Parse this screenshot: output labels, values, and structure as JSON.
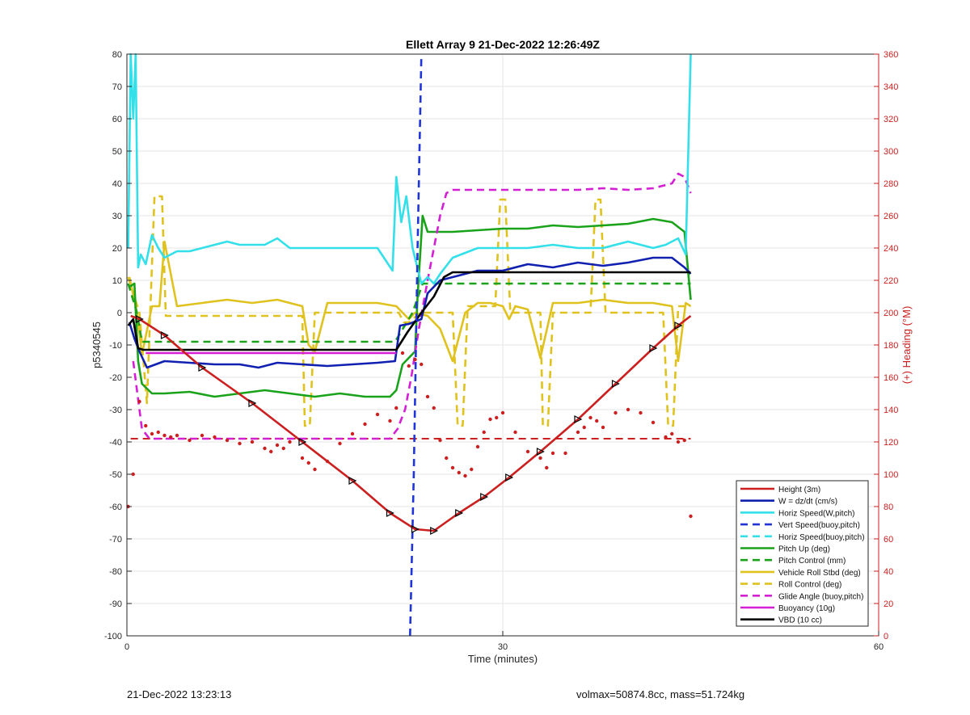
{
  "footer": {
    "left": "21-Dec-2022 13:23:13",
    "right": "volmax=50874.8cc, mass=51.724kg"
  },
  "chart_data": {
    "type": "line",
    "title": "Ellett Array 9 21-Dec-2022 12:26:49Z",
    "xlabel": "Time (minutes)",
    "ylabel": "p5340545",
    "y2label": "(+) Heading (°M)",
    "xlim": [
      0,
      60
    ],
    "ylim": [
      -100,
      80
    ],
    "y2lim": [
      0,
      360
    ],
    "xticks": [
      0,
      30,
      60
    ],
    "yticks": [
      80,
      70,
      60,
      50,
      40,
      30,
      20,
      10,
      0,
      -10,
      -20,
      -30,
      -40,
      -50,
      -60,
      -70,
      -80,
      -90,
      -100
    ],
    "y2ticks": [
      360,
      340,
      320,
      300,
      280,
      260,
      240,
      220,
      200,
      180,
      160,
      140,
      120,
      100,
      80,
      60,
      40,
      20,
      0
    ],
    "grid": true,
    "legend_position": "bottom-right",
    "colors": {
      "height": "#cc1f1f",
      "w": "#1020b0",
      "horiz": "#33e0ea",
      "vert_buoy": "#1f35d8",
      "horiz_buoy": "#33e0ea",
      "pitch": "#1aa31a",
      "pitch_ctrl": "#1aa31a",
      "roll": "#e0c21f",
      "roll_ctrl": "#e0c21f",
      "glide": "#d41fd4",
      "buoy": "#d41fd4",
      "vbd": "#000000",
      "heading": "#cc1f1f",
      "right_axis": "#cc1f1f"
    },
    "series": [
      {
        "name": "Height (3m)",
        "style": "solid",
        "color_key": "height",
        "markers": "triangle",
        "x": [
          0.3,
          1.0,
          3.0,
          6.0,
          10.0,
          14.0,
          18.0,
          21.0,
          23.0,
          24.5,
          26.5,
          28.5,
          30.5,
          33.0,
          36.0,
          39.0,
          42.0,
          44.0,
          45.0
        ],
        "y": [
          -1,
          -2,
          -7,
          -17,
          -28,
          -40,
          -52,
          -62,
          -67,
          -67.5,
          -62,
          -57,
          -51,
          -43,
          -33,
          -22,
          -11,
          -4,
          -1
        ]
      },
      {
        "name": "W = dz/dt (cm/s)",
        "style": "solid",
        "color_key": "w",
        "x": [
          0.2,
          0.6,
          1.0,
          1.6,
          3,
          5,
          7,
          9,
          10.5,
          12,
          14,
          16,
          18,
          20,
          21.4,
          21.8,
          22.5,
          23.5,
          24,
          25,
          26,
          28,
          30,
          32,
          34,
          36,
          38,
          40,
          42,
          43.5,
          44.5,
          45
        ],
        "y": [
          -3,
          -8,
          -12,
          -17,
          -15,
          -15.5,
          -16,
          -16,
          -17,
          -15.5,
          -16,
          -16.5,
          -16,
          -15.5,
          -15,
          -4,
          -3.5,
          -2,
          6,
          10,
          11,
          13,
          13,
          15,
          14,
          15.5,
          14.5,
          15.5,
          17,
          17,
          14,
          12
        ]
      },
      {
        "name": "Horiz Speed(W,pitch)",
        "style": "solid",
        "color_key": "horiz",
        "x": [
          0.1,
          0.3,
          0.5,
          0.7,
          0.9,
          1.1,
          1.5,
          2.0,
          2.5,
          3.0,
          4,
          5,
          6,
          7,
          8,
          9,
          10,
          11,
          12,
          13,
          14,
          16,
          18,
          20,
          21.2,
          21.5,
          21.9,
          22.3,
          22.8,
          23.5,
          24,
          24.5,
          25,
          26,
          28,
          30,
          32,
          34,
          36,
          38,
          40,
          42,
          43,
          44,
          44.6,
          45
        ],
        "y": [
          20,
          80,
          60,
          80,
          14,
          18,
          15,
          24,
          20,
          17,
          19,
          19,
          20,
          21,
          22,
          21,
          21,
          21,
          23,
          20,
          20,
          20,
          20,
          20,
          13,
          42,
          28,
          36,
          20,
          9,
          11,
          9,
          12,
          17,
          20,
          20,
          20,
          21,
          20,
          20,
          22,
          20,
          21,
          23,
          18,
          80
        ]
      },
      {
        "name": "Vert Speed(buoy,pitch)",
        "style": "dashed",
        "color_key": "vert_buoy",
        "x": [
          22.6,
          22.9,
          23.2,
          23.5
        ],
        "y": [
          -100,
          -50,
          20,
          80
        ]
      },
      {
        "name": "Horiz Speed(buoy,pitch)",
        "style": "dashed",
        "color_key": "horiz_buoy",
        "x": [],
        "y": []
      },
      {
        "name": "Pitch Up (deg)",
        "style": "solid",
        "color_key": "pitch",
        "x": [
          0.2,
          0.6,
          0.9,
          1.2,
          2,
          3,
          5,
          7,
          9,
          11,
          13,
          15,
          17,
          19,
          21,
          21.5,
          22,
          23,
          23.2,
          23.6,
          24,
          26,
          28,
          30,
          32,
          34,
          36,
          38,
          40,
          42,
          43.5,
          44.5,
          45
        ],
        "y": [
          8,
          9,
          -15,
          -22,
          -25,
          -25,
          -24.5,
          -26,
          -25,
          -24,
          -25,
          -26,
          -25,
          -26,
          -26,
          -24,
          -16,
          -12,
          5,
          30,
          25,
          25,
          25.5,
          26,
          26,
          27,
          26.5,
          27,
          27.5,
          29,
          28,
          25,
          4
        ]
      },
      {
        "name": "Pitch Control (mm)",
        "style": "dashed",
        "color_key": "pitch_ctrl",
        "x": [
          0.1,
          0.8,
          1.2,
          21.4,
          22.8,
          23.6,
          45
        ],
        "y": [
          9,
          0,
          -9,
          -9,
          0,
          9,
          9
        ]
      },
      {
        "name": "Vehicle Roll Stbd (deg)",
        "style": "solid",
        "color_key": "roll",
        "x": [
          0.2,
          0.8,
          1.2,
          2,
          2.6,
          3,
          4,
          6,
          8,
          10,
          12,
          14,
          14.5,
          15,
          16,
          18,
          20,
          21.5,
          22.5,
          23,
          24,
          25,
          26,
          27,
          28,
          29,
          30,
          30.5,
          31,
          32,
          33,
          34,
          36,
          38,
          40,
          42,
          43.5,
          44,
          44.6,
          45
        ],
        "y": [
          11,
          0,
          -13,
          2,
          2,
          22,
          2,
          3,
          4,
          3,
          4,
          2,
          -10,
          -12,
          3,
          3,
          3,
          2,
          -2,
          0,
          -1,
          -5,
          -15,
          0,
          3,
          3,
          2,
          -2,
          2,
          1,
          -14,
          3,
          3,
          4,
          3,
          3,
          2,
          -15,
          3,
          2
        ]
      },
      {
        "name": "Roll Control (deg)",
        "style": "dashed",
        "color_key": "roll_ctrl",
        "x": [
          0.1,
          1,
          1.6,
          2.2,
          2.8,
          3.1,
          3.4,
          14,
          14.2,
          14.6,
          15,
          21.7,
          22.1,
          22.5,
          23.4,
          26,
          26.4,
          26.8,
          27.2,
          28,
          29.4,
          29.8,
          30.2,
          30.6,
          33,
          33.2,
          33.6,
          34,
          36,
          37,
          37.4,
          37.8,
          38.2,
          42.8,
          43.2,
          43.6,
          44,
          45
        ],
        "y": [
          11,
          0,
          -28,
          36,
          36,
          -1,
          -1,
          -1,
          -35,
          -35,
          0,
          0,
          -3,
          -3,
          0,
          0,
          -35,
          -35,
          2,
          2,
          2,
          35,
          35,
          0,
          0,
          -35,
          -35,
          0,
          0,
          0,
          35,
          35,
          0,
          0,
          -35,
          -35,
          2,
          2
        ]
      },
      {
        "name": "Glide Angle (buoy,pitch)",
        "style": "dashed",
        "color_key": "glide",
        "x": [
          0.5,
          1.2,
          1.8,
          4,
          8,
          12,
          16,
          20,
          21,
          21.6,
          22.2,
          22.7,
          23.3,
          24.0,
          24.5,
          25.0,
          25.5,
          26,
          28,
          30,
          32,
          34,
          36,
          38,
          40,
          42,
          43.5,
          44,
          44.5,
          45
        ],
        "y": [
          -15,
          -36,
          -39,
          -39,
          -39,
          -39,
          -39,
          -39,
          -39,
          -36,
          -30,
          -20,
          -5,
          10,
          20,
          30,
          37,
          38,
          38,
          38,
          38,
          38,
          38,
          38.5,
          38,
          38.5,
          40,
          43,
          42,
          37
        ]
      },
      {
        "name": "Buoyancy (10g)",
        "style": "solid",
        "color_key": "buoy",
        "x": [
          1.5,
          21.5
        ],
        "y": [
          -12.5,
          -12.5
        ]
      },
      {
        "name": "VBD (10 cc)",
        "style": "solid",
        "color_key": "vbd",
        "x": [
          0.1,
          0.5,
          0.9,
          1.3,
          21.5,
          22.4,
          23.5,
          24.5,
          25.3,
          26,
          45
        ],
        "y": [
          -4,
          -2,
          -11,
          -11.5,
          -11.5,
          -6,
          0,
          5,
          11,
          12.5,
          12.5
        ]
      }
    ],
    "heading": {
      "name": "Heading (°M)",
      "axis": "right",
      "style": "points",
      "reference": 122,
      "x": [
        0.1,
        0.5,
        1.0,
        1.5,
        2.0,
        2.5,
        3.0,
        3.5,
        4.0,
        5.0,
        6.0,
        7.0,
        8.0,
        9.0,
        10.0,
        11.0,
        11.5,
        12.0,
        12.5,
        13.0,
        14.0,
        14.5,
        15.0,
        16.0,
        17.0,
        18.0,
        19.0,
        20.0,
        21.0,
        21.5,
        22.0,
        22.5,
        23.0,
        23.5,
        24.0,
        24.5,
        25.0,
        25.5,
        26.0,
        26.5,
        27.0,
        27.5,
        28.0,
        28.5,
        29.0,
        29.5,
        30.0,
        31.0,
        32.0,
        33.0,
        33.5,
        34.0,
        35.0,
        36.0,
        36.5,
        37.0,
        37.5,
        38.0,
        39.0,
        40.0,
        41.0,
        42.0,
        43.0,
        43.5,
        44.0,
        44.5,
        45.0
      ],
      "y": [
        80,
        100,
        145,
        130,
        125,
        126,
        124,
        123,
        124,
        121,
        124,
        123,
        121,
        119,
        120,
        116,
        114,
        118,
        116,
        120,
        110,
        107,
        103,
        108,
        119,
        125,
        131,
        137,
        133,
        141,
        175,
        167,
        171,
        168,
        148,
        141,
        121,
        110,
        104,
        101,
        99,
        103,
        117,
        126,
        134,
        135,
        138,
        126,
        114,
        110,
        104,
        113,
        113,
        126,
        129,
        135,
        133,
        129,
        138,
        140,
        138,
        132,
        123,
        125,
        120,
        121,
        74
      ]
    }
  }
}
